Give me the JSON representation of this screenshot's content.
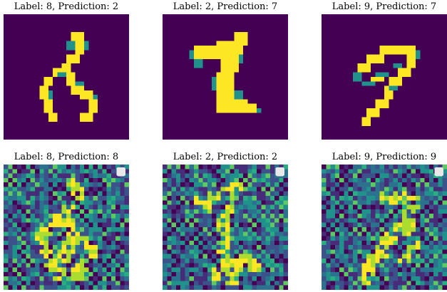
{
  "colors": {
    "background": "#440154",
    "foreground": "#fde725",
    "mid": "#21918c"
  },
  "panels": [
    {
      "title": "Label: 8, Prediction: 2",
      "kind": "digit",
      "digit": "8"
    },
    {
      "title": "Label: 2, Prediction: 7",
      "kind": "digit",
      "digit": "2"
    },
    {
      "title": "Label: 9, Prediction: 7",
      "kind": "digit",
      "digit": "9"
    },
    {
      "title": "Label: 8, Prediction: 8",
      "kind": "saliency",
      "digit": "8"
    },
    {
      "title": "Label: 2, Prediction: 2",
      "kind": "saliency",
      "digit": "2"
    },
    {
      "title": "Label: 9, Prediction: 9",
      "kind": "saliency",
      "digit": "9"
    }
  ]
}
